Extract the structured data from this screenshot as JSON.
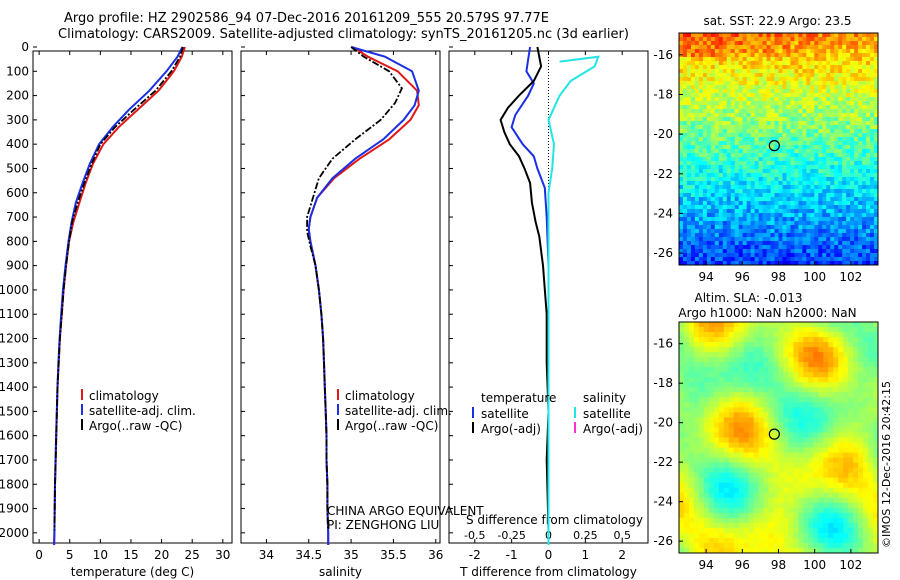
{
  "header": {
    "title_line1": "Argo profile: HZ 2902586_94 07-Dec-2016 20161209_555 20.579S 97.77E",
    "title_line2": "Climatology: CARS2009. Satellite-adjusted climatology: synTS_20161205.nc (3d earlier)"
  },
  "side_stamp": "©IMOS 12-Dec-2016 20:42:15",
  "colors": {
    "climatology": "#e01818",
    "satellite": "#1a2fe6",
    "argo": "#000000",
    "argo_salinity_diff": "#ff33cc",
    "satellite_salinity_diff": "#22e5e5"
  },
  "chart_data": [
    {
      "type": "line",
      "xlabel": "temperature (deg C)",
      "ylabel": "",
      "xlim": [
        -1,
        31.5
      ],
      "ylim": [
        0,
        2050
      ],
      "y_reversed": true,
      "x_ticks": [
        0,
        5,
        10,
        15,
        20,
        25,
        30
      ],
      "y_ticks": [
        0,
        100,
        200,
        300,
        400,
        500,
        600,
        700,
        800,
        900,
        1000,
        1100,
        1200,
        1300,
        1400,
        1500,
        1600,
        1700,
        1800,
        1900,
        2000
      ],
      "legend": {
        "placement": "lower-center",
        "entries": [
          "climatology",
          "satellite-adj. clim.",
          "Argo(..raw -QC)"
        ]
      },
      "series": [
        {
          "name": "climatology",
          "style": "solid",
          "points": [
            [
              23.8,
              0
            ],
            [
              23.3,
              40
            ],
            [
              22.0,
              100
            ],
            [
              19.5,
              180
            ],
            [
              16.0,
              260
            ],
            [
              13.0,
              330
            ],
            [
              10.5,
              400
            ],
            [
              8.8,
              480
            ],
            [
              7.6,
              560
            ],
            [
              6.6,
              640
            ],
            [
              5.6,
              720
            ],
            [
              4.9,
              800
            ],
            [
              4.4,
              900
            ],
            [
              4.0,
              1000
            ],
            [
              3.7,
              1100
            ],
            [
              3.4,
              1200
            ],
            [
              3.2,
              1300
            ],
            [
              3.0,
              1400
            ],
            [
              2.9,
              1500
            ],
            [
              2.8,
              1600
            ],
            [
              2.7,
              1700
            ],
            [
              2.6,
              1800
            ],
            [
              2.55,
              1900
            ],
            [
              2.5,
              2000
            ],
            [
              2.45,
              2050
            ]
          ]
        },
        {
          "name": "satellite-adj. clim.",
          "style": "solid",
          "points": [
            [
              23.4,
              0
            ],
            [
              22.6,
              40
            ],
            [
              20.8,
              100
            ],
            [
              18.0,
              180
            ],
            [
              14.6,
              260
            ],
            [
              12.0,
              330
            ],
            [
              9.8,
              400
            ],
            [
              8.3,
              480
            ],
            [
              7.1,
              560
            ],
            [
              6.0,
              640
            ],
            [
              5.3,
              720
            ],
            [
              4.8,
              800
            ],
            [
              4.3,
              900
            ],
            [
              3.9,
              1000
            ],
            [
              3.6,
              1100
            ],
            [
              3.35,
              1200
            ],
            [
              3.15,
              1300
            ],
            [
              3.0,
              1400
            ],
            [
              2.88,
              1500
            ],
            [
              2.78,
              1600
            ],
            [
              2.68,
              1700
            ],
            [
              2.6,
              1800
            ],
            [
              2.55,
              1900
            ],
            [
              2.5,
              2000
            ],
            [
              2.45,
              2050
            ]
          ]
        },
        {
          "name": "Argo(..raw -QC)",
          "style": "dashdot",
          "points": [
            [
              23.5,
              0
            ],
            [
              23.0,
              40
            ],
            [
              21.6,
              100
            ],
            [
              19.0,
              180
            ],
            [
              15.4,
              260
            ],
            [
              12.4,
              330
            ],
            [
              10.0,
              400
            ],
            [
              8.6,
              480
            ],
            [
              7.4,
              560
            ],
            [
              6.3,
              640
            ],
            [
              5.4,
              720
            ],
            [
              4.9,
              800
            ],
            [
              4.4,
              900
            ],
            [
              4.0,
              1000
            ],
            [
              3.7,
              1100
            ],
            [
              3.4,
              1200
            ],
            [
              3.2,
              1300
            ],
            [
              3.0,
              1400
            ],
            [
              2.9,
              1500
            ],
            [
              2.8,
              1600
            ],
            [
              2.7,
              1700
            ],
            [
              2.6,
              1800
            ],
            [
              2.55,
              1900
            ],
            [
              2.5,
              1990
            ]
          ]
        }
      ]
    },
    {
      "type": "line",
      "xlabel": "salinity",
      "xlim": [
        33.7,
        36.05
      ],
      "ylim": [
        0,
        2050
      ],
      "y_reversed": true,
      "x_ticks": [
        34,
        34.5,
        35,
        35.5,
        36
      ],
      "legend": {
        "placement": "lower-right",
        "entries": [
          "climatology",
          "satellite-adj. clim.",
          "Argo(..raw -QC)"
        ]
      },
      "annotation_lines": [
        "CHINA ARGO EQUIVALENT",
        "PI: ZENGHONG LIU"
      ],
      "series": [
        {
          "name": "climatology",
          "style": "solid",
          "points": [
            [
              35.02,
              0
            ],
            [
              35.2,
              40
            ],
            [
              35.55,
              100
            ],
            [
              35.78,
              180
            ],
            [
              35.8,
              240
            ],
            [
              35.7,
              300
            ],
            [
              35.45,
              380
            ],
            [
              35.1,
              460
            ],
            [
              34.8,
              540
            ],
            [
              34.6,
              620
            ],
            [
              34.52,
              700
            ],
            [
              34.5,
              750
            ],
            [
              34.52,
              800
            ],
            [
              34.58,
              900
            ],
            [
              34.62,
              1000
            ],
            [
              34.65,
              1100
            ],
            [
              34.67,
              1200
            ],
            [
              34.68,
              1300
            ],
            [
              34.69,
              1400
            ],
            [
              34.7,
              1500
            ],
            [
              34.71,
              1600
            ],
            [
              34.71,
              1700
            ],
            [
              34.72,
              1800
            ],
            [
              34.72,
              1900
            ],
            [
              34.73,
              2000
            ],
            [
              34.73,
              2050
            ]
          ]
        },
        {
          "name": "satellite-adj. clim.",
          "style": "solid",
          "points": [
            [
              35.0,
              0
            ],
            [
              35.4,
              40
            ],
            [
              35.72,
              100
            ],
            [
              35.8,
              180
            ],
            [
              35.75,
              240
            ],
            [
              35.62,
              300
            ],
            [
              35.38,
              380
            ],
            [
              35.05,
              460
            ],
            [
              34.78,
              540
            ],
            [
              34.6,
              620
            ],
            [
              34.52,
              700
            ],
            [
              34.5,
              750
            ],
            [
              34.52,
              800
            ],
            [
              34.58,
              900
            ],
            [
              34.62,
              1000
            ],
            [
              34.65,
              1100
            ],
            [
              34.67,
              1200
            ],
            [
              34.68,
              1300
            ],
            [
              34.69,
              1400
            ],
            [
              34.7,
              1500
            ],
            [
              34.71,
              1600
            ],
            [
              34.71,
              1700
            ],
            [
              34.72,
              1800
            ],
            [
              34.72,
              1900
            ],
            [
              34.73,
              2000
            ],
            [
              34.73,
              2050
            ]
          ]
        },
        {
          "name": "Argo(..raw -QC)",
          "style": "dashdot",
          "points": [
            [
              35.0,
              0
            ],
            [
              35.15,
              40
            ],
            [
              35.45,
              100
            ],
            [
              35.6,
              170
            ],
            [
              35.52,
              230
            ],
            [
              35.35,
              300
            ],
            [
              35.05,
              380
            ],
            [
              34.78,
              460
            ],
            [
              34.62,
              540
            ],
            [
              34.55,
              620
            ],
            [
              34.48,
              700
            ],
            [
              34.48,
              760
            ],
            [
              34.52,
              820
            ],
            [
              34.58,
              900
            ],
            [
              34.62,
              1000
            ],
            [
              34.65,
              1100
            ],
            [
              34.67,
              1200
            ],
            [
              34.68,
              1300
            ],
            [
              34.69,
              1400
            ],
            [
              34.7,
              1500
            ],
            [
              34.71,
              1600
            ],
            [
              34.71,
              1700
            ],
            [
              34.72,
              1800
            ],
            [
              34.72,
              1900
            ],
            [
              34.73,
              1990
            ]
          ]
        }
      ]
    },
    {
      "type": "line",
      "xlabel": "T difference from climatology",
      "xlabel_top": "S difference from climatology",
      "xlim": [
        -2.7,
        2.7
      ],
      "ylim": [
        0,
        2050
      ],
      "y_reversed": true,
      "x_ticks": [
        -2,
        -1,
        0,
        1,
        2
      ],
      "x_ticks_salinity": [
        -0.5,
        -0.25,
        0,
        0.25,
        0.5
      ],
      "legend": {
        "placement": "lower-center",
        "temperature_header": "temperature",
        "salinity_header": "salinity",
        "entries": [
          "satellite",
          "Argo(-adj)",
          "satellite",
          "Argo(-adj)"
        ]
      },
      "series": [
        {
          "name": "temperature satellite",
          "style": "solid",
          "points": [
            [
              -0.5,
              0
            ],
            [
              -0.55,
              50
            ],
            [
              -0.6,
              100
            ],
            [
              -0.4,
              150
            ],
            [
              -0.55,
              200
            ],
            [
              -0.9,
              280
            ],
            [
              -1.0,
              330
            ],
            [
              -0.7,
              400
            ],
            [
              -0.4,
              450
            ],
            [
              -0.3,
              500
            ],
            [
              -0.1,
              580
            ],
            [
              -0.05,
              700
            ],
            [
              0.0,
              900
            ],
            [
              0.0,
              2050
            ]
          ]
        },
        {
          "name": "temperature Argo(-adj)",
          "style": "solid",
          "points": [
            [
              -0.3,
              0
            ],
            [
              -0.2,
              80
            ],
            [
              -0.4,
              140
            ],
            [
              -0.8,
              200
            ],
            [
              -1.1,
              250
            ],
            [
              -1.3,
              300
            ],
            [
              -1.2,
              350
            ],
            [
              -1.05,
              400
            ],
            [
              -0.8,
              450
            ],
            [
              -0.65,
              500
            ],
            [
              -0.5,
              560
            ],
            [
              -0.45,
              640
            ],
            [
              -0.35,
              720
            ],
            [
              -0.25,
              780
            ],
            [
              -0.15,
              900
            ],
            [
              -0.05,
              1100
            ],
            [
              -0.05,
              1300
            ],
            [
              0.0,
              1500
            ],
            [
              -0.05,
              1700
            ],
            [
              0.0,
              1990
            ]
          ]
        },
        {
          "name": "salinity satellite",
          "style": "solid",
          "points": [
            [
              0.3,
              60
            ],
            [
              1.35,
              40
            ],
            [
              1.25,
              80
            ],
            [
              0.6,
              140
            ],
            [
              0.3,
              200
            ],
            [
              0.0,
              300
            ],
            [
              0.15,
              400
            ],
            [
              0.1,
              500
            ],
            [
              0.0,
              600
            ],
            [
              0.0,
              2050
            ]
          ]
        },
        {
          "name": "salinity Argo(-adj)",
          "style": "solid",
          "points": []
        }
      ]
    },
    {
      "type": "heatmap",
      "title": "sat. SST: 22.9 Argo: 23.5",
      "xlim": [
        92.5,
        103.5
      ],
      "ylim": [
        -26.6,
        -14.9
      ],
      "x_ticks": [
        94,
        96,
        98,
        100,
        102
      ],
      "y_ticks": [
        -16,
        -18,
        -20,
        -22,
        -24,
        -26
      ],
      "marker": {
        "lon": 97.77,
        "lat": -20.579
      }
    },
    {
      "type": "heatmap",
      "title": "Altim. SLA: -0.013",
      "subtitle": "Argo h1000: NaN h2000: NaN",
      "xlim": [
        92.5,
        103.5
      ],
      "ylim": [
        -26.6,
        -14.9
      ],
      "x_ticks": [
        94,
        96,
        98,
        100,
        102
      ],
      "y_ticks": [
        -16,
        -18,
        -20,
        -22,
        -24,
        -26
      ],
      "marker": {
        "lon": 97.77,
        "lat": -20.579
      }
    }
  ]
}
